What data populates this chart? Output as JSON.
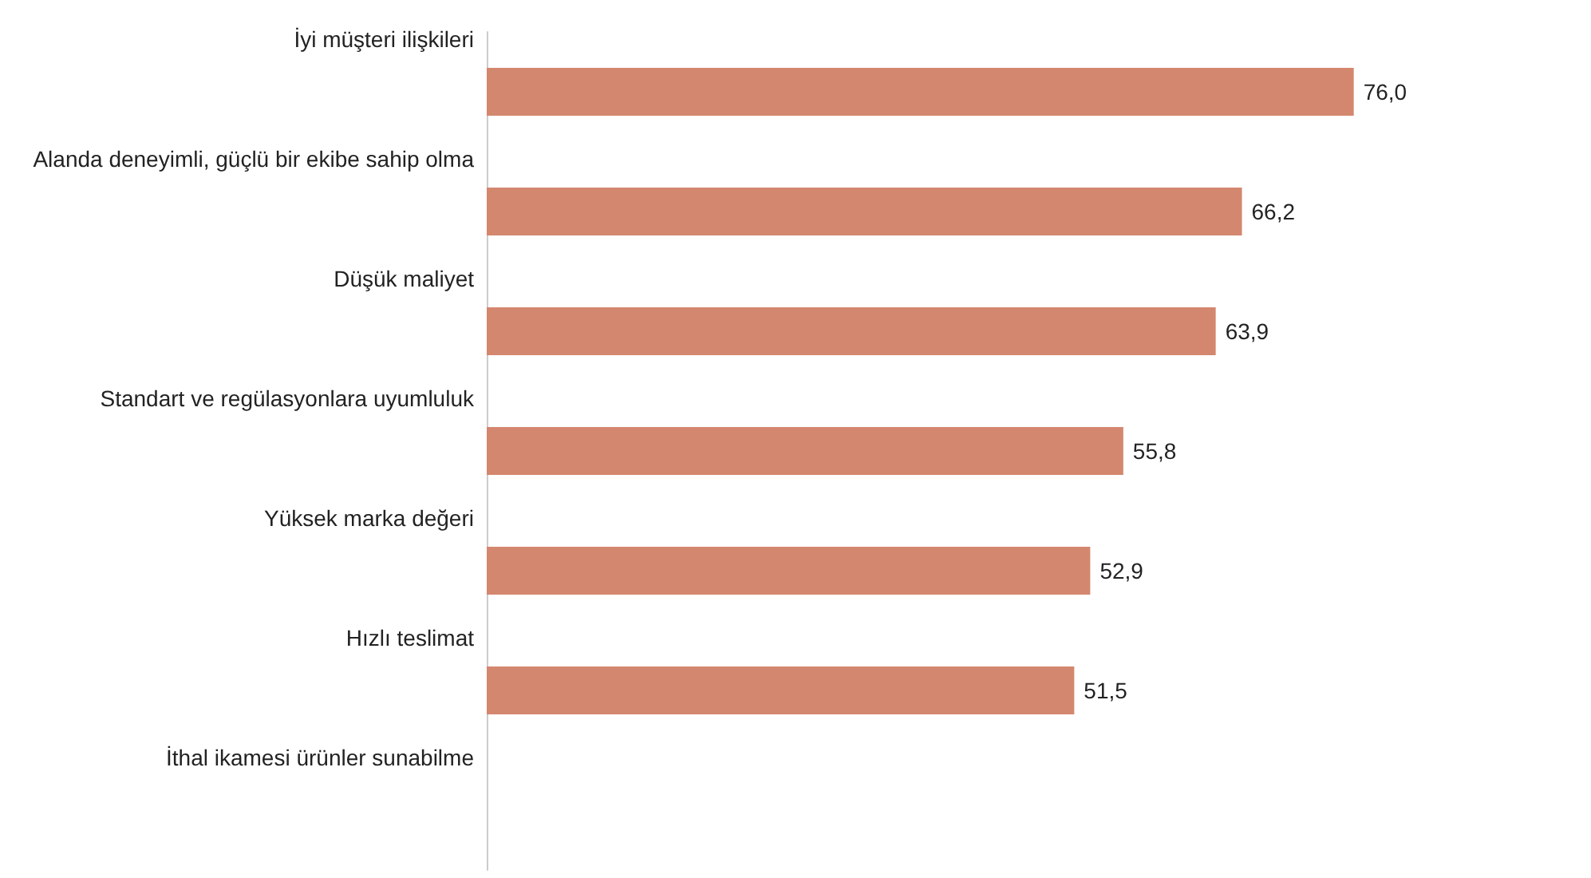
{
  "chart_data": {
    "type": "bar",
    "orientation": "horizontal",
    "categories": [
      "İyi müşteri ilişkileri",
      "Alanda deneyimli, güçlü bir ekibe sahip olma",
      "Düşük maliyet",
      "Standart ve regülasyonlara uyumluluk",
      "Yüksek marka değeri",
      "Hızlı teslimat",
      "İthal ikamesi ürünler sunabilme"
    ],
    "values": [
      76.0,
      66.2,
      63.9,
      55.8,
      52.9,
      51.5,
      null
    ],
    "value_labels": [
      "76,0",
      "66,2",
      "63,9",
      "55,8",
      "52,9",
      "51,5",
      null
    ],
    "color": "#d4876f",
    "grid": false
  }
}
